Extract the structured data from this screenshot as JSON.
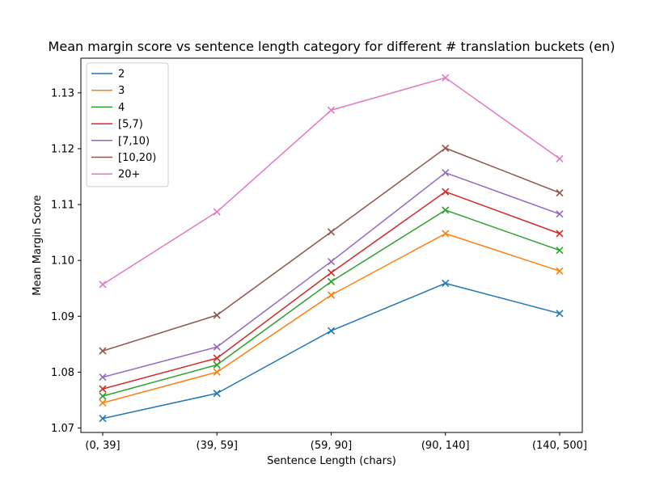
{
  "chart_data": {
    "type": "line",
    "title": "Mean margin score vs sentence length category for different # translation buckets (en)",
    "xlabel": "Sentence Length (chars)",
    "ylabel": "Mean Margin Score",
    "categories": [
      "(0, 39]",
      "(39, 59]",
      "(59, 90]",
      "(90, 140]",
      "(140, 500]"
    ],
    "ylim": [
      1.0692,
      1.1362
    ],
    "yticks": [
      1.07,
      1.08,
      1.09,
      1.1,
      1.11,
      1.12,
      1.13
    ],
    "yticks_labels": [
      "1.07",
      "1.08",
      "1.09",
      "1.10",
      "1.11",
      "1.12",
      "1.13"
    ],
    "grid": false,
    "legend_position": "top-left",
    "marker": "x",
    "series": [
      {
        "name": "2",
        "color": "#1f77b4",
        "values": [
          1.0717,
          1.0762,
          1.0874,
          1.0959,
          1.0905
        ]
      },
      {
        "name": "3",
        "color": "#ff7f0e",
        "values": [
          1.0745,
          1.08,
          1.0938,
          1.1048,
          1.0981
        ]
      },
      {
        "name": "4",
        "color": "#2ca02c",
        "values": [
          1.0757,
          1.0813,
          1.0962,
          1.109,
          1.1018
        ]
      },
      {
        "name": "[5,7)",
        "color": "#d62728",
        "values": [
          1.077,
          1.0825,
          1.0978,
          1.1123,
          1.1048
        ]
      },
      {
        "name": "[7,10)",
        "color": "#9467bd",
        "values": [
          1.0791,
          1.0845,
          1.0998,
          1.1157,
          1.1083
        ]
      },
      {
        "name": "[10,20)",
        "color": "#8c564b",
        "values": [
          1.0838,
          1.0902,
          1.1051,
          1.1201,
          1.1121
        ]
      },
      {
        "name": "20+",
        "color": "#e377c2",
        "values": [
          1.0957,
          1.1087,
          1.1269,
          1.1327,
          1.1182
        ]
      }
    ]
  }
}
